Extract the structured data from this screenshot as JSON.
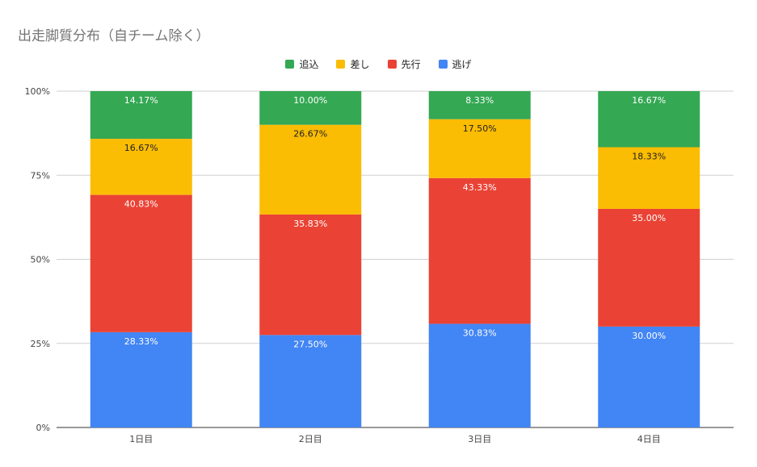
{
  "chart_data": {
    "type": "bar",
    "stacked": true,
    "title": "出走脚質分布（自チーム除く）",
    "categories": [
      "1日目",
      "2日目",
      "3日目",
      "4日目"
    ],
    "series": [
      {
        "name": "逃げ",
        "color": "#4285f4",
        "label_color": "#ffffff",
        "values": [
          28.33,
          27.5,
          30.83,
          30.0
        ]
      },
      {
        "name": "先行",
        "color": "#ea4335",
        "label_color": "#ffffff",
        "values": [
          40.83,
          35.83,
          43.33,
          35.0
        ]
      },
      {
        "name": "差し",
        "color": "#fbbc04",
        "label_color": "#222222",
        "values": [
          16.67,
          26.67,
          17.5,
          18.33
        ]
      },
      {
        "name": "追込",
        "color": "#34a853",
        "label_color": "#ffffff",
        "values": [
          14.17,
          10.0,
          8.33,
          16.67
        ]
      }
    ],
    "data_labels": [
      [
        "28.33%",
        "27.50%",
        "30.83%",
        "30.00%"
      ],
      [
        "40.83%",
        "35.83%",
        "43.33%",
        "35.00%"
      ],
      [
        "16.67%",
        "26.67%",
        "17.50%",
        "18.33%"
      ],
      [
        "14.17%",
        "10.00%",
        "8.33%",
        "16.67%"
      ]
    ],
    "legend_order": [
      "追込",
      "差し",
      "先行",
      "逃げ"
    ],
    "legend_position": "top",
    "ylim": [
      0,
      100
    ],
    "yticks": [
      "0%",
      "25%",
      "50%",
      "75%",
      "100%"
    ],
    "grid": true
  }
}
